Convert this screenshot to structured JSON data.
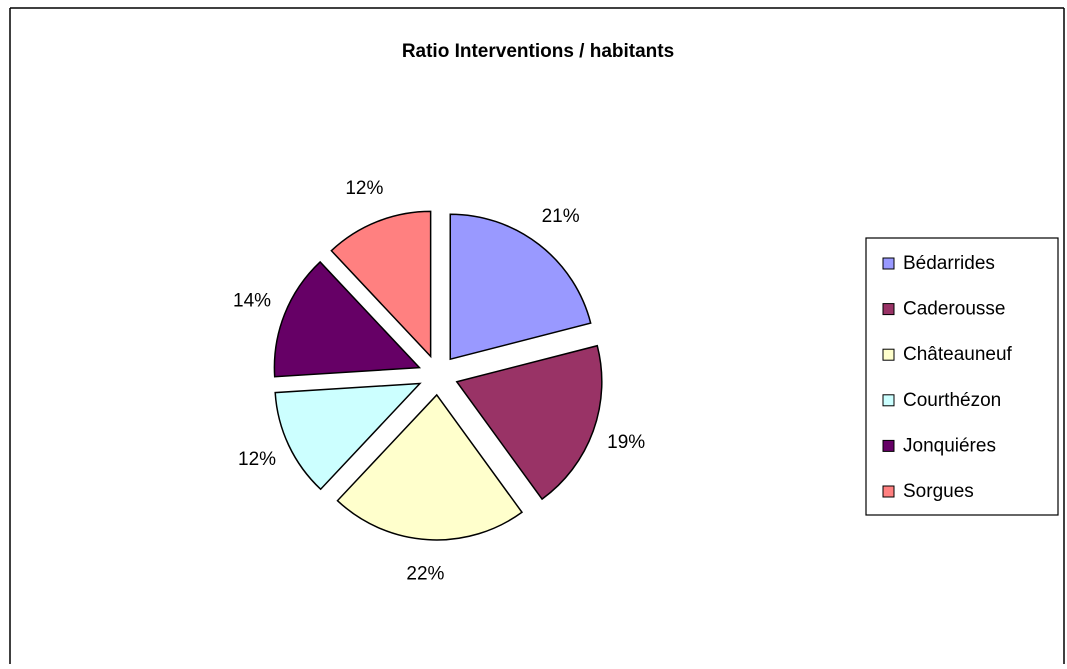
{
  "chart_data": {
    "type": "pie",
    "title": "Ratio Interventions / habitants",
    "categories": [
      "Bédarrides",
      "Caderousse",
      "Châteauneuf",
      "Courthézon",
      "Jonquiéres",
      "Sorgues"
    ],
    "values": [
      21,
      19,
      22,
      12,
      14,
      12
    ],
    "value_labels": [
      "21%",
      "19%",
      "22%",
      "12%",
      "14%",
      "12%"
    ],
    "colors": [
      "#9999ff",
      "#993366",
      "#ffffcc",
      "#ccffff",
      "#660066",
      "#ff8080"
    ],
    "legend": "right"
  }
}
